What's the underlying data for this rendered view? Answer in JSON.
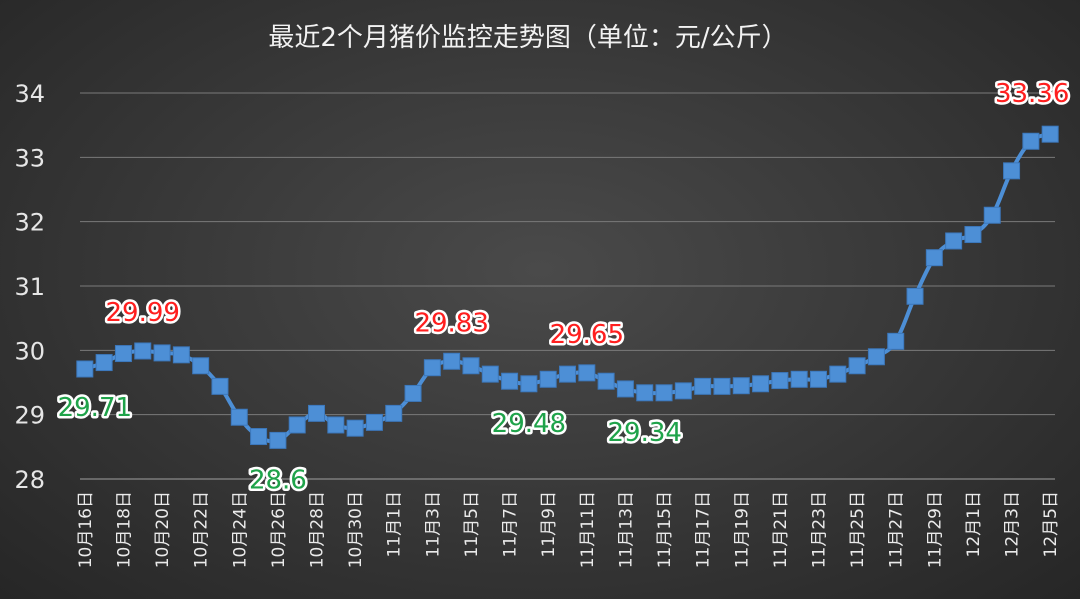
{
  "chart_data": {
    "type": "line",
    "title": "最近2个月猪价监控走势图（单位：元/公斤）",
    "xlabel": "",
    "ylabel": "",
    "ylim": [
      28,
      34
    ],
    "yticks": [
      28,
      29,
      30,
      31,
      32,
      33,
      34
    ],
    "grid": true,
    "legend": "none",
    "colors": {
      "line": "#4d8fd6",
      "marker": "#4d8fd6",
      "high_label": "#ff1f1f",
      "low_label": "#1fa34a"
    },
    "x": [
      "10月16日",
      "10月17日",
      "10月18日",
      "10月19日",
      "10月20日",
      "10月21日",
      "10月22日",
      "10月23日",
      "10月24日",
      "10月25日",
      "10月26日",
      "10月27日",
      "10月28日",
      "10月29日",
      "10月30日",
      "10月31日",
      "11月1日",
      "11月2日",
      "11月3日",
      "11月4日",
      "11月5日",
      "11月6日",
      "11月7日",
      "11月8日",
      "11月9日",
      "11月10日",
      "11月11日",
      "11月12日",
      "11月13日",
      "11月14日",
      "11月15日",
      "11月16日",
      "11月17日",
      "11月18日",
      "11月19日",
      "11月20日",
      "11月21日",
      "11月22日",
      "11月23日",
      "11月24日",
      "11月25日",
      "11月26日",
      "11月27日",
      "11月28日",
      "11月29日",
      "11月30日",
      "12月1日",
      "12月2日",
      "12月3日",
      "12月4日",
      "12月5日"
    ],
    "xtick_labels": [
      "10月16日",
      "10月18日",
      "10月20日",
      "10月22日",
      "10月24日",
      "10月26日",
      "10月28日",
      "10月30日",
      "11月1日",
      "11月3日",
      "11月5日",
      "11月7日",
      "11月9日",
      "11月11日",
      "11月13日",
      "11月15日",
      "11月17日",
      "11月19日",
      "11月21日",
      "11月23日",
      "11月25日",
      "11月27日",
      "11月29日",
      "12月1日",
      "12月3日",
      "12月5日"
    ],
    "series": [
      {
        "values": [
          29.71,
          29.81,
          29.95,
          29.99,
          29.96,
          29.93,
          29.76,
          29.44,
          28.96,
          28.66,
          28.6,
          28.84,
          29.02,
          28.84,
          28.79,
          28.88,
          29.02,
          29.33,
          29.73,
          29.83,
          29.76,
          29.63,
          29.52,
          29.48,
          29.55,
          29.63,
          29.65,
          29.52,
          29.4,
          29.34,
          29.34,
          29.37,
          29.44,
          29.44,
          29.45,
          29.48,
          29.53,
          29.55,
          29.55,
          29.63,
          29.76,
          29.9,
          30.14,
          30.84,
          31.44,
          31.7,
          31.8,
          32.1,
          32.79,
          33.25,
          33.36
        ]
      }
    ],
    "annotations": [
      {
        "text": "29.71",
        "index": 0,
        "kind": "low"
      },
      {
        "text": "29.99",
        "index": 3,
        "kind": "high"
      },
      {
        "text": "28.6",
        "index": 10,
        "kind": "low"
      },
      {
        "text": "29.83",
        "index": 19,
        "kind": "high"
      },
      {
        "text": "29.48",
        "index": 23,
        "kind": "low"
      },
      {
        "text": "29.65",
        "index": 26,
        "kind": "high"
      },
      {
        "text": "29.34",
        "index": 29,
        "kind": "low"
      },
      {
        "text": "33.36",
        "index": 50,
        "kind": "high"
      }
    ]
  }
}
